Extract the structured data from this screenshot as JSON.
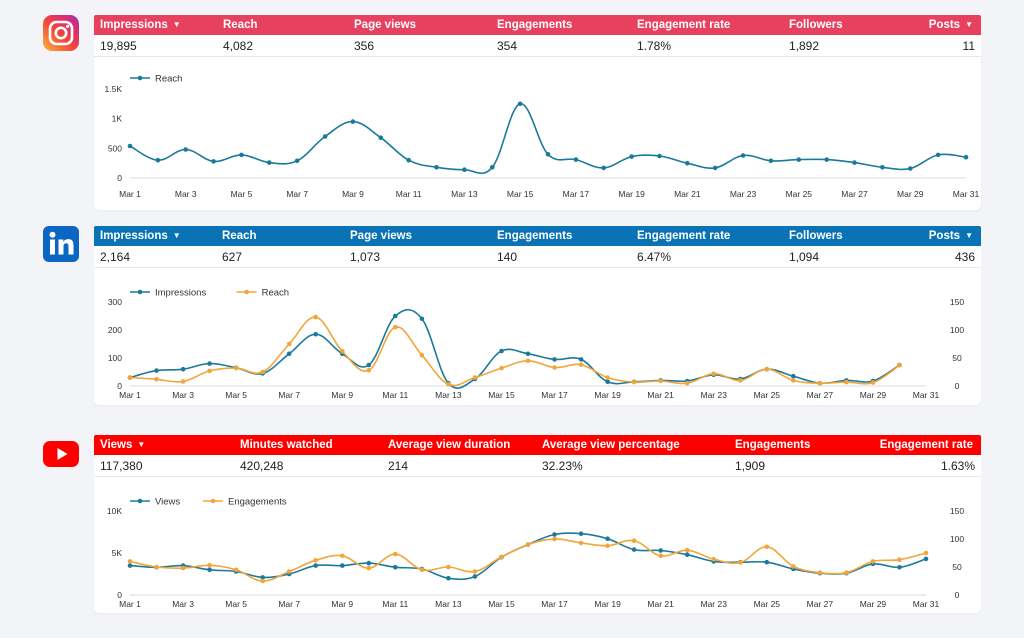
{
  "colors": {
    "instagram_header": "#e8415f",
    "linkedin_header": "#0a73b6",
    "youtube_header": "#ff0000",
    "series_blue": "#1b7a9c",
    "series_orange": "#f2a53a"
  },
  "instagram": {
    "logo": "instagram-icon",
    "headers": [
      "Impressions",
      "Reach",
      "Page views",
      "Engagements",
      "Engagement rate",
      "Followers",
      "Posts"
    ],
    "values": [
      "19,895",
      "4,082",
      "356",
      "354",
      "1.78%",
      "1,892",
      "11"
    ]
  },
  "linkedin": {
    "logo": "linkedin-icon",
    "headers": [
      "Impressions",
      "Reach",
      "Page views",
      "Engagements",
      "Engagement rate",
      "Followers",
      "Posts"
    ],
    "values": [
      "2,164",
      "627",
      "1,073",
      "140",
      "6.47%",
      "1,094",
      "436"
    ]
  },
  "youtube": {
    "logo": "youtube-icon",
    "headers": [
      "Views",
      "Minutes watched",
      "Average view duration",
      "Average view percentage",
      "Engagements",
      "Engagement rate"
    ],
    "values": [
      "117,380",
      "420,248",
      "214",
      "32.23%",
      "1,909",
      "1.63%"
    ]
  },
  "chart_data": [
    {
      "type": "line",
      "id": "instagram",
      "x_ticks": [
        "Mar 1",
        "Mar 3",
        "Mar 5",
        "Mar 7",
        "Mar 9",
        "Mar 11",
        "Mar 13",
        "Mar 15",
        "Mar 17",
        "Mar 19",
        "Mar 21",
        "Mar 23",
        "Mar 25",
        "Mar 27",
        "Mar 29",
        "Mar 31"
      ],
      "y_left_ticks": [
        "0",
        "500",
        "1K",
        "1.5K"
      ],
      "y_left_lim": [
        0,
        1500
      ],
      "series": [
        {
          "name": "Reach",
          "axis": "left",
          "color_key": "series_blue",
          "values": [
            540,
            300,
            480,
            280,
            390,
            260,
            290,
            700,
            950,
            680,
            300,
            180,
            140,
            180,
            1250,
            400,
            310,
            170,
            360,
            370,
            250,
            170,
            380,
            290,
            310,
            310,
            260,
            180,
            160,
            390,
            350
          ]
        }
      ]
    },
    {
      "type": "line",
      "id": "linkedin",
      "x_ticks": [
        "Mar 1",
        "Mar 3",
        "Mar 5",
        "Mar 7",
        "Mar 9",
        "Mar 11",
        "Mar 13",
        "Mar 15",
        "Mar 17",
        "Mar 19",
        "Mar 21",
        "Mar 23",
        "Mar 25",
        "Mar 27",
        "Mar 29",
        "Mar 31"
      ],
      "y_left_ticks": [
        "0",
        "100",
        "200",
        "300"
      ],
      "y_left_lim": [
        0,
        300
      ],
      "y_right_ticks": [
        "0",
        "50",
        "100",
        "150"
      ],
      "y_right_lim": [
        0,
        150
      ],
      "series": [
        {
          "name": "Impressions",
          "axis": "left",
          "color_key": "series_blue",
          "values": [
            30,
            55,
            60,
            80,
            65,
            45,
            115,
            185,
            115,
            75,
            250,
            240,
            10,
            25,
            125,
            115,
            95,
            95,
            15,
            15,
            20,
            18,
            40,
            25,
            60,
            35,
            10,
            20,
            18,
            75
          ]
        },
        {
          "name": "Reach",
          "axis": "right",
          "color_key": "series_orange",
          "values": [
            15,
            12,
            8,
            27,
            32,
            25,
            75,
            123,
            62,
            28,
            105,
            55,
            3,
            15,
            32,
            45,
            33,
            38,
            15,
            7,
            9,
            5,
            22,
            10,
            30,
            10,
            5,
            7,
            6,
            37
          ]
        }
      ]
    },
    {
      "type": "line",
      "id": "youtube",
      "x_ticks": [
        "Mar 1",
        "Mar 3",
        "Mar 5",
        "Mar 7",
        "Mar 9",
        "Mar 11",
        "Mar 13",
        "Mar 15",
        "Mar 17",
        "Mar 19",
        "Mar 21",
        "Mar 23",
        "Mar 25",
        "Mar 27",
        "Mar 29",
        "Mar 31"
      ],
      "y_left_ticks": [
        "0",
        "5K",
        "10K"
      ],
      "y_left_lim": [
        0,
        10000
      ],
      "y_right_ticks": [
        "0",
        "50",
        "100",
        "150"
      ],
      "y_right_lim": [
        0,
        150
      ],
      "series": [
        {
          "name": "Views",
          "axis": "left",
          "color_key": "series_blue",
          "values": [
            3500,
            3300,
            3500,
            3000,
            2800,
            2100,
            2500,
            3500,
            3500,
            3800,
            3300,
            3100,
            2000,
            2200,
            4500,
            6000,
            7200,
            7300,
            6700,
            5400,
            5300,
            4800,
            4000,
            3900,
            3900,
            3100,
            2600,
            2600,
            3700,
            3300,
            4300
          ]
        },
        {
          "name": "Engagements",
          "axis": "right",
          "color_key": "series_orange",
          "values": [
            60,
            50,
            48,
            53,
            45,
            25,
            42,
            62,
            70,
            48,
            73,
            45,
            50,
            42,
            68,
            90,
            100,
            93,
            88,
            97,
            70,
            80,
            64,
            58,
            86,
            51,
            40,
            40,
            60,
            63,
            75
          ]
        }
      ]
    }
  ]
}
